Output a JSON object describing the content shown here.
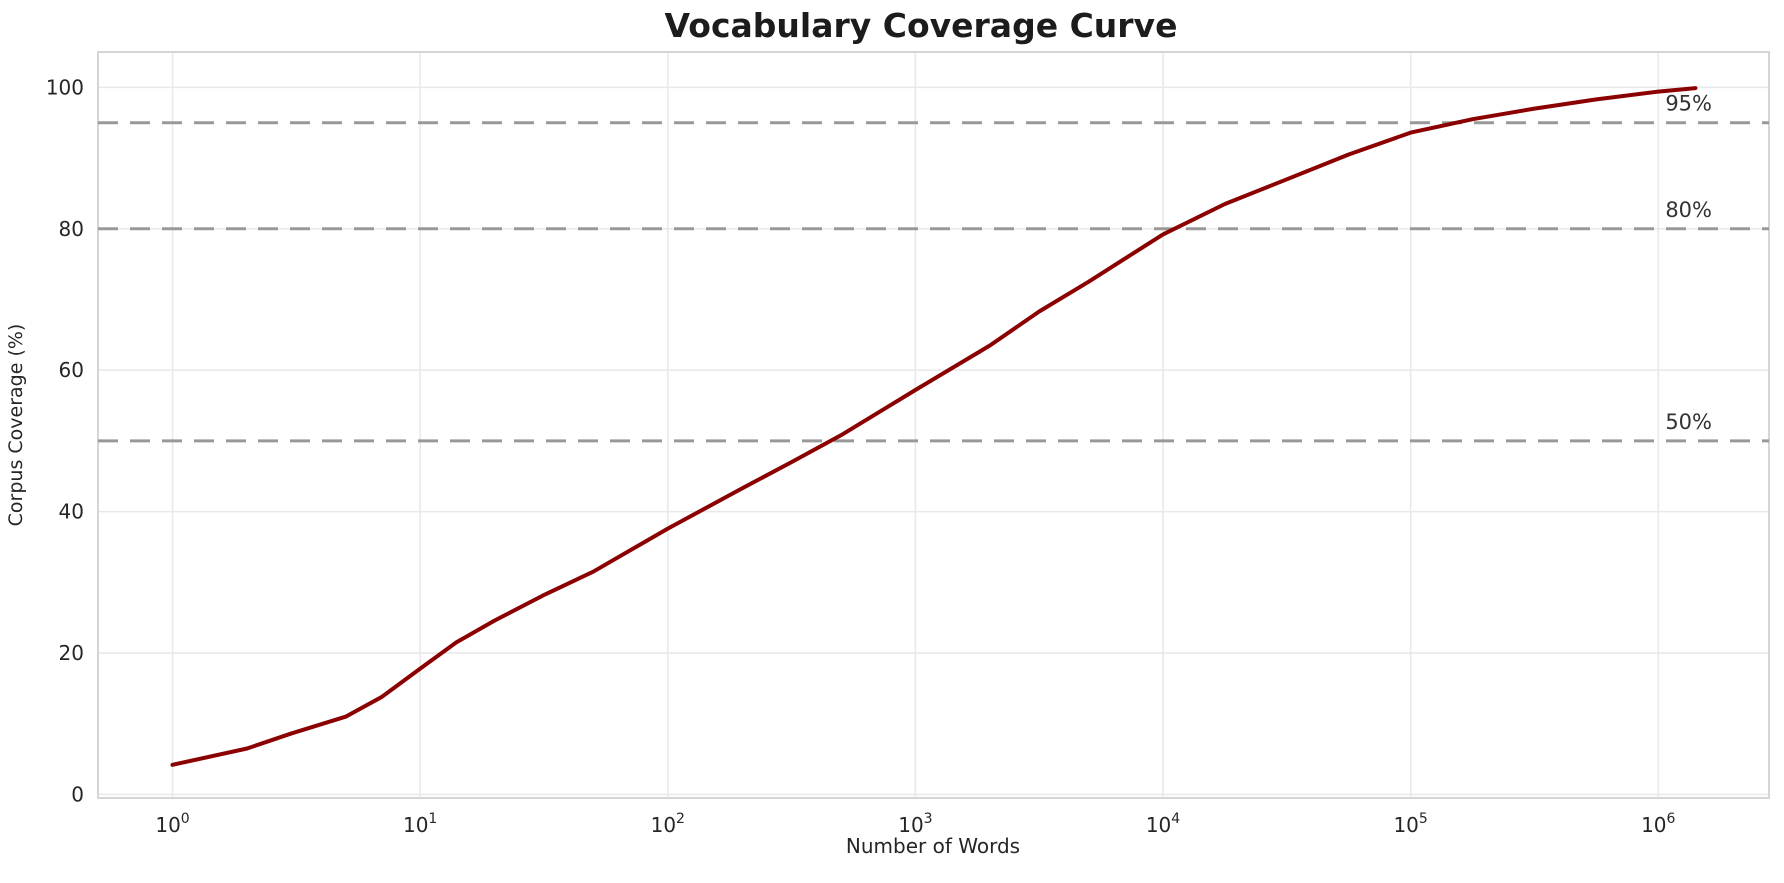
{
  "chart_data": {
    "type": "line",
    "title": "Vocabulary Coverage Curve",
    "xlabel": "Number of Words",
    "ylabel": "Corpus Coverage (%)",
    "x_scale": "log",
    "xlim": [
      0.5,
      2800000
    ],
    "ylim": [
      -0.5,
      105
    ],
    "grid": true,
    "legend_position": "none",
    "x_ticks": [
      {
        "value": 1,
        "base": "10",
        "exp": "0"
      },
      {
        "value": 10,
        "base": "10",
        "exp": "1"
      },
      {
        "value": 100,
        "base": "10",
        "exp": "2"
      },
      {
        "value": 1000,
        "base": "10",
        "exp": "3"
      },
      {
        "value": 10000,
        "base": "10",
        "exp": "4"
      },
      {
        "value": 100000,
        "base": "10",
        "exp": "5"
      },
      {
        "value": 1000000,
        "base": "10",
        "exp": "6"
      }
    ],
    "y_ticks": [
      0,
      20,
      40,
      60,
      80,
      100
    ],
    "series": [
      {
        "name": "vocabulary-coverage",
        "color": "#8B0000",
        "line_width": 4,
        "x": [
          1,
          2,
          3,
          5,
          7,
          10,
          14,
          20,
          32,
          50,
          100,
          200,
          316,
          500,
          1000,
          2000,
          3162,
          5000,
          10000,
          17783,
          31623,
          56234,
          100000,
          177828,
          316228,
          562341,
          1000000,
          1412538
        ],
        "y": [
          4.2,
          6.5,
          8.6,
          11.0,
          13.8,
          17.8,
          21.5,
          24.6,
          28.3,
          31.5,
          37.6,
          43.3,
          47.0,
          50.8,
          57.2,
          63.5,
          68.3,
          72.5,
          79.2,
          83.5,
          87.0,
          90.5,
          93.6,
          95.5,
          97.0,
          98.3,
          99.4,
          99.9
        ]
      }
    ],
    "reference_lines": [
      {
        "y": 50,
        "label": "50%"
      },
      {
        "y": 80,
        "label": "80%"
      },
      {
        "y": 95,
        "label": "95%"
      }
    ],
    "colors": {
      "curve": "#8B0000",
      "reference_line": "#999999",
      "reference_label": "#333333",
      "grid": "#e9e9e9",
      "frame": "#d5d5d5",
      "tick_text": "#262626",
      "title_text": "#1c1c1c"
    }
  }
}
